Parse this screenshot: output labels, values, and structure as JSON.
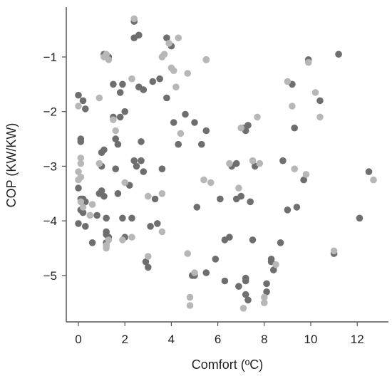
{
  "chart_data": {
    "type": "scatter",
    "title": "",
    "xlabel": "Comfort (ºC)",
    "ylabel": "COP (KW/KW)",
    "xlim": [
      -0.5,
      13.3
    ],
    "ylim": [
      -5.8,
      -0.1
    ],
    "xticks": [
      0,
      2,
      4,
      6,
      8,
      10,
      12
    ],
    "yticks": [
      -1,
      -2,
      -3,
      -4,
      -5
    ],
    "grid": false,
    "legend": "none",
    "colors": {
      "dark": "#6e6e6e",
      "light": "#b7b7b7",
      "axis": "#555555"
    },
    "series": [
      {
        "color": "#6e6e6e",
        "points": [
          [
            0.0,
            -1.7
          ],
          [
            0.1,
            -2.5
          ],
          [
            0.2,
            -1.8
          ],
          [
            0.3,
            -1.95
          ],
          [
            0.1,
            -2.55
          ],
          [
            0.0,
            -3.4
          ],
          [
            0.1,
            -3.6
          ],
          [
            0.2,
            -3.85
          ],
          [
            0.0,
            -4.05
          ],
          [
            0.3,
            -4.1
          ],
          [
            0.2,
            -3.6
          ],
          [
            0.3,
            -3.65
          ],
          [
            0.1,
            -3.8
          ],
          [
            0.6,
            -4.4
          ],
          [
            0.8,
            -3.9
          ],
          [
            0.9,
            -3.5
          ],
          [
            1.0,
            -3.45
          ],
          [
            1.0,
            -3.0
          ],
          [
            1.0,
            -2.75
          ],
          [
            1.1,
            -2.7
          ],
          [
            1.1,
            -3.55
          ],
          [
            1.2,
            -3.95
          ],
          [
            1.2,
            -4.2
          ],
          [
            1.2,
            -4.25
          ],
          [
            1.2,
            -4.4
          ],
          [
            1.3,
            -4.3
          ],
          [
            1.1,
            -0.95
          ],
          [
            1.3,
            -1.0
          ],
          [
            1.5,
            -1.5
          ],
          [
            1.8,
            -1.65
          ],
          [
            1.9,
            -1.5
          ],
          [
            1.5,
            -2.1
          ],
          [
            1.6,
            -2.5
          ],
          [
            1.7,
            -2.6
          ],
          [
            1.8,
            -2.1
          ],
          [
            2.0,
            -2.0
          ],
          [
            1.6,
            -3.05
          ],
          [
            1.7,
            -3.5
          ],
          [
            1.9,
            -3.95
          ],
          [
            2.0,
            -4.3
          ],
          [
            2.2,
            -3.35
          ],
          [
            2.3,
            -3.95
          ],
          [
            2.4,
            -2.9
          ],
          [
            2.5,
            -3.0
          ],
          [
            2.7,
            -2.9
          ],
          [
            2.8,
            -3.1
          ],
          [
            2.9,
            -4.75
          ],
          [
            3.0,
            -4.85
          ],
          [
            3.1,
            -4.1
          ],
          [
            3.3,
            -3.6
          ],
          [
            3.4,
            -4.05
          ],
          [
            2.4,
            -0.35
          ],
          [
            2.4,
            -0.65
          ],
          [
            2.6,
            -0.6
          ],
          [
            2.6,
            -1.55
          ],
          [
            2.8,
            -1.6
          ],
          [
            2.7,
            -2.55
          ],
          [
            3.2,
            -1.45
          ],
          [
            3.5,
            -1.4
          ],
          [
            3.8,
            -1.75
          ],
          [
            3.8,
            -0.65
          ],
          [
            4.0,
            -0.8
          ],
          [
            3.6,
            -3.05
          ],
          [
            4.1,
            -2.2
          ],
          [
            4.3,
            -2.6
          ],
          [
            4.6,
            -2.05
          ],
          [
            5.0,
            -2.2
          ],
          [
            5.3,
            -2.6
          ],
          [
            5.5,
            -2.35
          ],
          [
            5.5,
            -1.05
          ],
          [
            5.1,
            -3.75
          ],
          [
            4.9,
            -5.0
          ],
          [
            5.0,
            -5.0
          ],
          [
            5.5,
            -4.95
          ],
          [
            5.9,
            -4.7
          ],
          [
            6.1,
            -3.6
          ],
          [
            6.3,
            -5.1
          ],
          [
            6.3,
            -4.35
          ],
          [
            6.5,
            -4.3
          ],
          [
            6.6,
            -3.0
          ],
          [
            6.8,
            -2.95
          ],
          [
            6.8,
            -3.6
          ],
          [
            6.9,
            -5.2
          ],
          [
            7.0,
            -3.55
          ],
          [
            7.1,
            -2.3
          ],
          [
            7.2,
            -2.35
          ],
          [
            7.3,
            -2.25
          ],
          [
            7.4,
            -3.65
          ],
          [
            7.5,
            -4.35
          ],
          [
            7.6,
            -3.0
          ],
          [
            7.2,
            -5.05
          ],
          [
            7.2,
            -5.35
          ],
          [
            7.3,
            -5.45
          ],
          [
            8.1,
            -5.15
          ],
          [
            8.1,
            -5.3
          ],
          [
            8.3,
            -4.75
          ],
          [
            8.4,
            -4.9
          ],
          [
            8.7,
            -4.4
          ],
          [
            8.8,
            -2.9
          ],
          [
            9.0,
            -3.8
          ],
          [
            9.4,
            -3.75
          ],
          [
            9.2,
            -1.5
          ],
          [
            9.3,
            -2.3
          ],
          [
            9.7,
            -3.25
          ],
          [
            9.9,
            -1.05
          ],
          [
            10.4,
            -1.8
          ],
          [
            11.2,
            -0.95
          ],
          [
            11.0,
            -4.6
          ],
          [
            12.1,
            -3.95
          ],
          [
            12.5,
            -3.1
          ],
          [
            7.2,
            -5.1
          ],
          [
            8.3,
            -4.7
          ]
        ]
      },
      {
        "color": "#b7b7b7",
        "points": [
          [
            0.0,
            -1.9
          ],
          [
            0.1,
            -2.85
          ],
          [
            0.0,
            -3.1
          ],
          [
            0.1,
            -3.2
          ],
          [
            0.0,
            -3.25
          ],
          [
            0.1,
            -3.65
          ],
          [
            0.2,
            -3.75
          ],
          [
            0.5,
            -3.9
          ],
          [
            0.6,
            -3.7
          ],
          [
            0.1,
            -2.95
          ],
          [
            0.9,
            -1.75
          ],
          [
            1.1,
            -1.0
          ],
          [
            1.2,
            -0.95
          ],
          [
            1.3,
            -1.05
          ],
          [
            1.5,
            -2.15
          ],
          [
            1.6,
            -2.35
          ],
          [
            0.9,
            -2.95
          ],
          [
            1.2,
            -4.45
          ],
          [
            1.2,
            -4.5
          ],
          [
            1.3,
            -4.35
          ],
          [
            1.9,
            -4.35
          ],
          [
            2.0,
            -3.3
          ],
          [
            2.3,
            -1.4
          ],
          [
            2.4,
            -0.3
          ],
          [
            2.3,
            -4.3
          ],
          [
            3.0,
            -3.55
          ],
          [
            3.0,
            -4.65
          ],
          [
            3.6,
            -3.5
          ],
          [
            3.6,
            -4.2
          ],
          [
            3.6,
            -1.0
          ],
          [
            3.7,
            -0.95
          ],
          [
            3.9,
            -0.75
          ],
          [
            4.0,
            -1.2
          ],
          [
            4.1,
            -1.25
          ],
          [
            4.2,
            -1.55
          ],
          [
            4.3,
            -0.65
          ],
          [
            4.4,
            -2.4
          ],
          [
            4.7,
            -1.3
          ],
          [
            4.7,
            -4.6
          ],
          [
            4.8,
            -5.4
          ],
          [
            4.8,
            -5.55
          ],
          [
            5.0,
            -4.95
          ],
          [
            5.4,
            -3.25
          ],
          [
            5.5,
            -1.05
          ],
          [
            5.7,
            -3.3
          ],
          [
            6.5,
            -2.95
          ],
          [
            6.9,
            -3.4
          ],
          [
            7.0,
            -2.3
          ],
          [
            7.1,
            -5.6
          ],
          [
            7.5,
            -2.9
          ],
          [
            7.7,
            -2.1
          ],
          [
            7.8,
            -2.95
          ],
          [
            8.0,
            -5.4
          ],
          [
            8.0,
            -5.5
          ],
          [
            8.5,
            -4.8
          ],
          [
            9.2,
            -1.9
          ],
          [
            9.3,
            -3.05
          ],
          [
            9.8,
            -3.15
          ],
          [
            9.9,
            -1.1
          ],
          [
            10.2,
            -1.65
          ],
          [
            10.4,
            -2.1
          ],
          [
            11.0,
            -4.55
          ],
          [
            12.7,
            -3.25
          ],
          [
            9.0,
            -1.45
          ]
        ]
      }
    ]
  }
}
